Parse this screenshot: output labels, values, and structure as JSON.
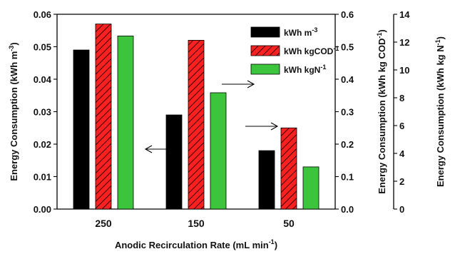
{
  "chart_data": {
    "type": "bar",
    "xlabel": "Anodic Recirculation Rate (mL min",
    "xlabel_sup": "-1",
    "xlabel_end": ")",
    "categories": [
      "250",
      "150",
      "50"
    ],
    "series": [
      {
        "name": "kWh m",
        "name_sup": "-3",
        "axis": "left",
        "color": "#000000",
        "pattern": "solid",
        "values": [
          0.049,
          0.029,
          0.018
        ]
      },
      {
        "name": "kWh kgCOD",
        "name_sup": "-1",
        "axis": "middle",
        "color": "#ff2020",
        "pattern": "hatch",
        "values": [
          0.57,
          0.52,
          0.25
        ]
      },
      {
        "name": "kWh kgN",
        "name_sup": "-1",
        "axis": "right",
        "color": "#3cc43c",
        "pattern": "solid",
        "values": [
          12.44,
          8.36,
          3.03
        ]
      }
    ],
    "axes": {
      "left": {
        "label": "Energy Consumption (kWh m",
        "label_sup": "-3",
        "label_end": ")",
        "ylim": [
          0,
          0.06
        ],
        "ticks": [
          "0.00",
          "0.01",
          "0.02",
          "0.03",
          "0.04",
          "0.05",
          "0.06"
        ]
      },
      "middle": {
        "label": "Energy Consumption (kWh kg COD",
        "label_sup": "-1",
        "label_end": ")",
        "ylim": [
          0,
          0.6
        ],
        "ticks": [
          "0.0",
          "0.1",
          "0.2",
          "0.3",
          "0.4",
          "0.5",
          "0.6"
        ]
      },
      "right": {
        "label": "Energy Consumption (kWh kg N",
        "label_sup": "-1",
        "label_end": ")",
        "ylim": [
          0,
          14
        ],
        "ticks": [
          "0",
          "2",
          "4",
          "6",
          "8",
          "10",
          "12",
          "14"
        ]
      }
    },
    "legend_position": "top-right",
    "grid": false
  }
}
